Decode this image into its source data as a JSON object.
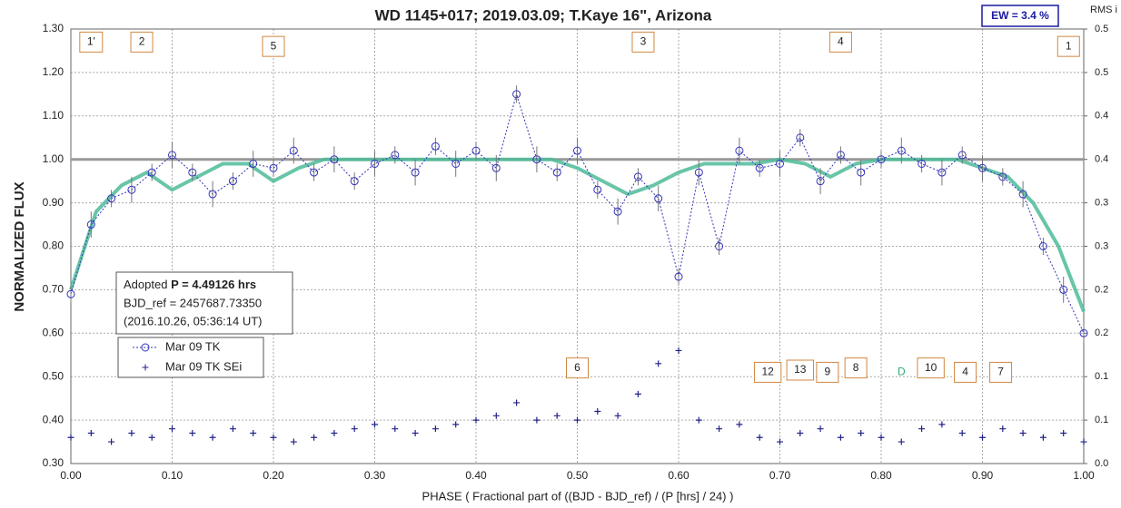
{
  "chart_data": {
    "type": "scatter",
    "title": "WD 1145+017; 2019.03.09; T.Kaye 16\",  Arizona",
    "ew_label": "EW =  3.4 %",
    "y2_title": "RMS i",
    "ylabel": "NORMALIZED FLUX",
    "xlabel": "PHASE ( Fractional part of ((BJD - BJD_ref) / (P [hrs] / 24) )",
    "info": {
      "prefix": "Adopted",
      "period": "P = 4.49126 hrs",
      "bjd": "BJD_ref = 2457687.73350",
      "date": "(2016.10.26, 05:36:14 UT)"
    },
    "xlim": [
      0,
      1
    ],
    "ylim": [
      0.3,
      1.3
    ],
    "y2lim": [
      0,
      0.5
    ],
    "xticks": [
      {
        "value": 0,
        "label": "0.00"
      },
      {
        "value": 0.1,
        "label": "0.10"
      },
      {
        "value": 0.2,
        "label": "0.20"
      },
      {
        "value": 0.3,
        "label": "0.30"
      },
      {
        "value": 0.4,
        "label": "0.40"
      },
      {
        "value": 0.5,
        "label": "0.50"
      },
      {
        "value": 0.6,
        "label": "0.60"
      },
      {
        "value": 0.7,
        "label": "0.70"
      },
      {
        "value": 0.8,
        "label": "0.80"
      },
      {
        "value": 0.9,
        "label": "0.90"
      },
      {
        "value": 1,
        "label": "1.00"
      }
    ],
    "yticks": [
      {
        "value": 0.3,
        "label": "0.30"
      },
      {
        "value": 0.4,
        "label": "0.40"
      },
      {
        "value": 0.5,
        "label": "0.50"
      },
      {
        "value": 0.6,
        "label": "0.60"
      },
      {
        "value": 0.7,
        "label": "0.70"
      },
      {
        "value": 0.8,
        "label": "0.80"
      },
      {
        "value": 0.9,
        "label": "0.90"
      },
      {
        "value": 1.0,
        "label": "1.00"
      },
      {
        "value": 1.1,
        "label": "1.10"
      },
      {
        "value": 1.2,
        "label": "1.20"
      },
      {
        "value": 1.3,
        "label": "1.30"
      }
    ],
    "y2ticks": [
      {
        "value": 0,
        "label": "0.0"
      },
      {
        "value": 0.05,
        "label": "0.1"
      },
      {
        "value": 0.1,
        "label": "0.1"
      },
      {
        "value": 0.15,
        "label": "0.2"
      },
      {
        "value": 0.2,
        "label": "0.2"
      },
      {
        "value": 0.25,
        "label": "0.3"
      },
      {
        "value": 0.3,
        "label": "0.3"
      },
      {
        "value": 0.35,
        "label": "0.4"
      },
      {
        "value": 0.4,
        "label": "0.4"
      },
      {
        "value": 0.45,
        "label": "0.5"
      },
      {
        "value": 0.5,
        "label": "0.5"
      }
    ],
    "grid": true,
    "reference_line": 1.0,
    "series": [
      {
        "name": "Mar 09 TK",
        "color": "#3333bb",
        "marker": "circle",
        "x": [
          0,
          0.02,
          0.04,
          0.06,
          0.08,
          0.1,
          0.12,
          0.14,
          0.16,
          0.18,
          0.2,
          0.22,
          0.24,
          0.26,
          0.28,
          0.3,
          0.32,
          0.34,
          0.36,
          0.38,
          0.4,
          0.42,
          0.44,
          0.46,
          0.48,
          0.5,
          0.52,
          0.54,
          0.56,
          0.58,
          0.6,
          0.62,
          0.64,
          0.66,
          0.68,
          0.7,
          0.72,
          0.74,
          0.76,
          0.78,
          0.8,
          0.82,
          0.84,
          0.86,
          0.88,
          0.9,
          0.92,
          0.94,
          0.96,
          0.98,
          1.0
        ],
        "values": [
          0.69,
          0.85,
          0.91,
          0.93,
          0.97,
          1.01,
          0.97,
          0.92,
          0.95,
          0.99,
          0.98,
          1.02,
          0.97,
          1.0,
          0.95,
          0.99,
          1.01,
          0.97,
          1.03,
          0.99,
          1.02,
          0.98,
          1.15,
          1.0,
          0.97,
          1.02,
          0.93,
          0.88,
          0.96,
          0.91,
          0.73,
          0.97,
          0.8,
          1.02,
          0.98,
          0.99,
          1.05,
          0.95,
          1.01,
          0.97,
          1.0,
          1.02,
          0.99,
          0.97,
          1.01,
          0.98,
          0.96,
          0.92,
          0.8,
          0.7,
          0.6
        ],
        "errors": [
          0.02,
          0.03,
          0.02,
          0.03,
          0.02,
          0.03,
          0.02,
          0.03,
          0.02,
          0.03,
          0.02,
          0.03,
          0.02,
          0.03,
          0.02,
          0.03,
          0.02,
          0.03,
          0.02,
          0.03,
          0.02,
          0.03,
          0.02,
          0.03,
          0.02,
          0.03,
          0.02,
          0.03,
          0.02,
          0.03,
          0.02,
          0.03,
          0.02,
          0.03,
          0.02,
          0.03,
          0.02,
          0.03,
          0.02,
          0.03,
          0.02,
          0.03,
          0.02,
          0.03,
          0.02,
          0.03,
          0.02,
          0.03,
          0.02,
          0.03,
          0.02
        ]
      },
      {
        "name": "Mar 09 TK SEi",
        "color": "#222288",
        "marker": "plus",
        "x": [
          0,
          0.02,
          0.04,
          0.06,
          0.08,
          0.1,
          0.12,
          0.14,
          0.16,
          0.18,
          0.2,
          0.22,
          0.24,
          0.26,
          0.28,
          0.3,
          0.32,
          0.34,
          0.36,
          0.38,
          0.4,
          0.42,
          0.44,
          0.46,
          0.48,
          0.5,
          0.52,
          0.54,
          0.56,
          0.58,
          0.6,
          0.62,
          0.64,
          0.66,
          0.68,
          0.7,
          0.72,
          0.74,
          0.76,
          0.78,
          0.8,
          0.82,
          0.84,
          0.86,
          0.88,
          0.9,
          0.92,
          0.94,
          0.96,
          0.98,
          1.0
        ],
        "values": [
          0.36,
          0.37,
          0.35,
          0.37,
          0.36,
          0.38,
          0.37,
          0.36,
          0.38,
          0.37,
          0.36,
          0.35,
          0.36,
          0.37,
          0.38,
          0.39,
          0.38,
          0.37,
          0.38,
          0.39,
          0.4,
          0.41,
          0.44,
          0.4,
          0.41,
          0.4,
          0.42,
          0.41,
          0.46,
          0.53,
          0.56,
          0.4,
          0.38,
          0.39,
          0.36,
          0.35,
          0.37,
          0.38,
          0.36,
          0.37,
          0.36,
          0.35,
          0.38,
          0.39,
          0.37,
          0.36,
          0.38,
          0.37,
          0.36,
          0.37,
          0.35
        ]
      }
    ],
    "fit": {
      "color": "#4dbb99",
      "x": [
        0,
        0.025,
        0.05,
        0.075,
        0.1,
        0.125,
        0.15,
        0.175,
        0.2,
        0.225,
        0.25,
        0.275,
        0.3,
        0.325,
        0.35,
        0.375,
        0.4,
        0.425,
        0.45,
        0.475,
        0.5,
        0.525,
        0.55,
        0.575,
        0.6,
        0.625,
        0.65,
        0.675,
        0.7,
        0.725,
        0.75,
        0.775,
        0.8,
        0.825,
        0.85,
        0.875,
        0.9,
        0.925,
        0.95,
        0.975,
        1.0
      ],
      "values": [
        0.7,
        0.88,
        0.94,
        0.97,
        0.93,
        0.96,
        0.99,
        0.99,
        0.95,
        0.98,
        1.0,
        1.0,
        1.0,
        1.0,
        1.0,
        1.0,
        1.0,
        1.0,
        1.0,
        1.0,
        0.98,
        0.95,
        0.92,
        0.94,
        0.97,
        0.99,
        0.99,
        0.99,
        1.0,
        0.99,
        0.96,
        0.99,
        1.0,
        1.0,
        1.0,
        1.0,
        0.98,
        0.96,
        0.9,
        0.8,
        0.65
      ]
    },
    "annotations": [
      {
        "text": "1'",
        "x": 0.02,
        "y": 1.27,
        "boxed": true
      },
      {
        "text": "2",
        "x": 0.07,
        "y": 1.27,
        "boxed": true
      },
      {
        "text": "5",
        "x": 0.2,
        "y": 1.26,
        "boxed": true
      },
      {
        "text": "3",
        "x": 0.565,
        "y": 1.27,
        "boxed": true
      },
      {
        "text": "4",
        "x": 0.76,
        "y": 1.27,
        "boxed": true
      },
      {
        "text": "1",
        "x": 0.985,
        "y": 1.26,
        "boxed": true
      },
      {
        "text": "6",
        "x": 0.5,
        "y": 0.52,
        "boxed": true
      },
      {
        "text": "12",
        "x": 0.688,
        "y": 0.51,
        "boxed": true
      },
      {
        "text": "13",
        "x": 0.72,
        "y": 0.515,
        "boxed": true
      },
      {
        "text": "9",
        "x": 0.747,
        "y": 0.51,
        "boxed": true
      },
      {
        "text": "8",
        "x": 0.775,
        "y": 0.52,
        "boxed": true
      },
      {
        "text": "D",
        "x": 0.82,
        "y": 0.51,
        "boxed": false,
        "color": "#33aa77"
      },
      {
        "text": "10",
        "x": 0.849,
        "y": 0.52,
        "boxed": true
      },
      {
        "text": "4",
        "x": 0.883,
        "y": 0.51,
        "boxed": true
      },
      {
        "text": "7",
        "x": 0.918,
        "y": 0.51,
        "boxed": true
      }
    ]
  }
}
